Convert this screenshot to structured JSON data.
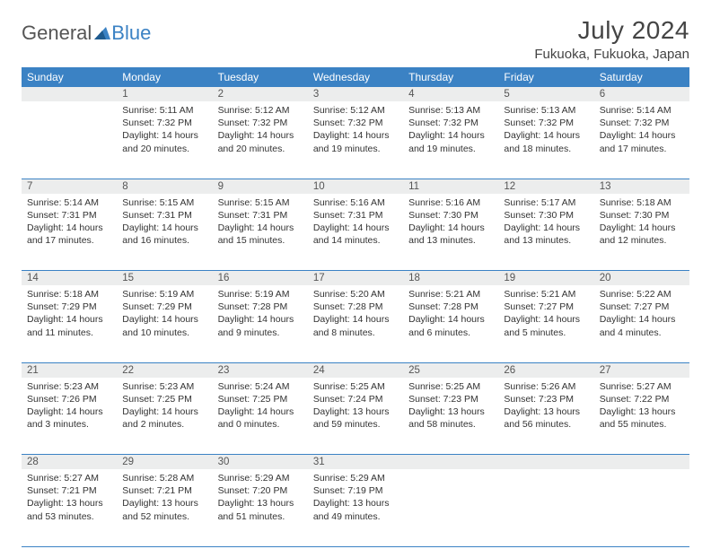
{
  "brand": {
    "part1": "General",
    "part2": "Blue"
  },
  "title": "July 2024",
  "location": "Fukuoka, Fukuoka, Japan",
  "colors": {
    "header_bg": "#3b82c4",
    "header_fg": "#ffffff",
    "daynum_bg": "#eceded",
    "border": "#3b82c4",
    "text": "#333333",
    "title_text": "#444444"
  },
  "fonts": {
    "base": "Arial",
    "title_size_pt": 21,
    "location_size_pt": 11,
    "th_size_pt": 9,
    "cell_size_pt": 8
  },
  "days": [
    "Sunday",
    "Monday",
    "Tuesday",
    "Wednesday",
    "Thursday",
    "Friday",
    "Saturday"
  ],
  "weeks": [
    [
      {
        "n": "",
        "sr": "",
        "ss": "",
        "dl": ""
      },
      {
        "n": "1",
        "sr": "Sunrise: 5:11 AM",
        "ss": "Sunset: 7:32 PM",
        "dl": "Daylight: 14 hours and 20 minutes."
      },
      {
        "n": "2",
        "sr": "Sunrise: 5:12 AM",
        "ss": "Sunset: 7:32 PM",
        "dl": "Daylight: 14 hours and 20 minutes."
      },
      {
        "n": "3",
        "sr": "Sunrise: 5:12 AM",
        "ss": "Sunset: 7:32 PM",
        "dl": "Daylight: 14 hours and 19 minutes."
      },
      {
        "n": "4",
        "sr": "Sunrise: 5:13 AM",
        "ss": "Sunset: 7:32 PM",
        "dl": "Daylight: 14 hours and 19 minutes."
      },
      {
        "n": "5",
        "sr": "Sunrise: 5:13 AM",
        "ss": "Sunset: 7:32 PM",
        "dl": "Daylight: 14 hours and 18 minutes."
      },
      {
        "n": "6",
        "sr": "Sunrise: 5:14 AM",
        "ss": "Sunset: 7:32 PM",
        "dl": "Daylight: 14 hours and 17 minutes."
      }
    ],
    [
      {
        "n": "7",
        "sr": "Sunrise: 5:14 AM",
        "ss": "Sunset: 7:31 PM",
        "dl": "Daylight: 14 hours and 17 minutes."
      },
      {
        "n": "8",
        "sr": "Sunrise: 5:15 AM",
        "ss": "Sunset: 7:31 PM",
        "dl": "Daylight: 14 hours and 16 minutes."
      },
      {
        "n": "9",
        "sr": "Sunrise: 5:15 AM",
        "ss": "Sunset: 7:31 PM",
        "dl": "Daylight: 14 hours and 15 minutes."
      },
      {
        "n": "10",
        "sr": "Sunrise: 5:16 AM",
        "ss": "Sunset: 7:31 PM",
        "dl": "Daylight: 14 hours and 14 minutes."
      },
      {
        "n": "11",
        "sr": "Sunrise: 5:16 AM",
        "ss": "Sunset: 7:30 PM",
        "dl": "Daylight: 14 hours and 13 minutes."
      },
      {
        "n": "12",
        "sr": "Sunrise: 5:17 AM",
        "ss": "Sunset: 7:30 PM",
        "dl": "Daylight: 14 hours and 13 minutes."
      },
      {
        "n": "13",
        "sr": "Sunrise: 5:18 AM",
        "ss": "Sunset: 7:30 PM",
        "dl": "Daylight: 14 hours and 12 minutes."
      }
    ],
    [
      {
        "n": "14",
        "sr": "Sunrise: 5:18 AM",
        "ss": "Sunset: 7:29 PM",
        "dl": "Daylight: 14 hours and 11 minutes."
      },
      {
        "n": "15",
        "sr": "Sunrise: 5:19 AM",
        "ss": "Sunset: 7:29 PM",
        "dl": "Daylight: 14 hours and 10 minutes."
      },
      {
        "n": "16",
        "sr": "Sunrise: 5:19 AM",
        "ss": "Sunset: 7:28 PM",
        "dl": "Daylight: 14 hours and 9 minutes."
      },
      {
        "n": "17",
        "sr": "Sunrise: 5:20 AM",
        "ss": "Sunset: 7:28 PM",
        "dl": "Daylight: 14 hours and 8 minutes."
      },
      {
        "n": "18",
        "sr": "Sunrise: 5:21 AM",
        "ss": "Sunset: 7:28 PM",
        "dl": "Daylight: 14 hours and 6 minutes."
      },
      {
        "n": "19",
        "sr": "Sunrise: 5:21 AM",
        "ss": "Sunset: 7:27 PM",
        "dl": "Daylight: 14 hours and 5 minutes."
      },
      {
        "n": "20",
        "sr": "Sunrise: 5:22 AM",
        "ss": "Sunset: 7:27 PM",
        "dl": "Daylight: 14 hours and 4 minutes."
      }
    ],
    [
      {
        "n": "21",
        "sr": "Sunrise: 5:23 AM",
        "ss": "Sunset: 7:26 PM",
        "dl": "Daylight: 14 hours and 3 minutes."
      },
      {
        "n": "22",
        "sr": "Sunrise: 5:23 AM",
        "ss": "Sunset: 7:25 PM",
        "dl": "Daylight: 14 hours and 2 minutes."
      },
      {
        "n": "23",
        "sr": "Sunrise: 5:24 AM",
        "ss": "Sunset: 7:25 PM",
        "dl": "Daylight: 14 hours and 0 minutes."
      },
      {
        "n": "24",
        "sr": "Sunrise: 5:25 AM",
        "ss": "Sunset: 7:24 PM",
        "dl": "Daylight: 13 hours and 59 minutes."
      },
      {
        "n": "25",
        "sr": "Sunrise: 5:25 AM",
        "ss": "Sunset: 7:23 PM",
        "dl": "Daylight: 13 hours and 58 minutes."
      },
      {
        "n": "26",
        "sr": "Sunrise: 5:26 AM",
        "ss": "Sunset: 7:23 PM",
        "dl": "Daylight: 13 hours and 56 minutes."
      },
      {
        "n": "27",
        "sr": "Sunrise: 5:27 AM",
        "ss": "Sunset: 7:22 PM",
        "dl": "Daylight: 13 hours and 55 minutes."
      }
    ],
    [
      {
        "n": "28",
        "sr": "Sunrise: 5:27 AM",
        "ss": "Sunset: 7:21 PM",
        "dl": "Daylight: 13 hours and 53 minutes."
      },
      {
        "n": "29",
        "sr": "Sunrise: 5:28 AM",
        "ss": "Sunset: 7:21 PM",
        "dl": "Daylight: 13 hours and 52 minutes."
      },
      {
        "n": "30",
        "sr": "Sunrise: 5:29 AM",
        "ss": "Sunset: 7:20 PM",
        "dl": "Daylight: 13 hours and 51 minutes."
      },
      {
        "n": "31",
        "sr": "Sunrise: 5:29 AM",
        "ss": "Sunset: 7:19 PM",
        "dl": "Daylight: 13 hours and 49 minutes."
      },
      {
        "n": "",
        "sr": "",
        "ss": "",
        "dl": ""
      },
      {
        "n": "",
        "sr": "",
        "ss": "",
        "dl": ""
      },
      {
        "n": "",
        "sr": "",
        "ss": "",
        "dl": ""
      }
    ]
  ]
}
